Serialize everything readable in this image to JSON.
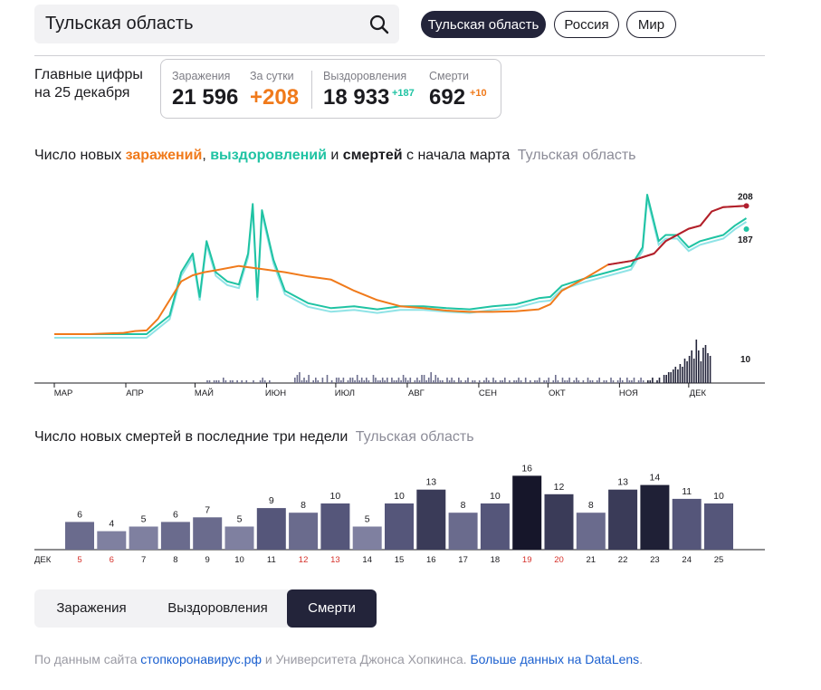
{
  "search": {
    "value": "Тульская область"
  },
  "regions": [
    {
      "label": "Тульская область",
      "active": true
    },
    {
      "label": "Россия",
      "active": false
    },
    {
      "label": "Мир",
      "active": false
    }
  ],
  "summary": {
    "heading": "Главные цифры",
    "date": "на 25 декабря",
    "infected_label": "Заражения",
    "infected": "21 596",
    "daily_label": "За сутки",
    "daily": "+208",
    "recovered_label": "Выздоровления",
    "recovered": "18 933",
    "recovered_delta": "+187",
    "deaths_label": "Смерти",
    "deaths": "692",
    "deaths_delta": "+10"
  },
  "chart1_title": {
    "prefix": "Число новых ",
    "infections": "заражений",
    "comma": ", ",
    "recoveries": "выздоровлений",
    "and": " и ",
    "deaths": "смертей",
    "suffix": " с начала марта",
    "region": "Тульская область"
  },
  "chart2_title": {
    "text": "Число новых смертей в последние три недели",
    "region": "Тульская область"
  },
  "tabs": [
    {
      "label": "Заражения",
      "active": false
    },
    {
      "label": "Выздоровления",
      "active": false
    },
    {
      "label": "Смерти",
      "active": true
    }
  ],
  "footer": {
    "prefix": "По данным сайта ",
    "link1": "стопкоронавирус.рф",
    "middle": " и Университета Джонса Хопкинса. ",
    "link2": "Больше данных на DataLens",
    "dot": "."
  },
  "colors": {
    "infections": "#f07a1b",
    "infections_late": "#b01e2e",
    "recoveries": "#1fc3a3",
    "recoveries_light": "#8fe3e6",
    "deaths_bar": "#6e6f8e",
    "accent_dark": "#23243a",
    "weekend": "#d6312b"
  },
  "chart_data": [
    {
      "type": "line",
      "months": [
        "МАР",
        "АПР",
        "МАЙ",
        "ИЮН",
        "ИЮЛ",
        "АВГ",
        "СЕН",
        "ОКТ",
        "НОЯ",
        "ДЕК"
      ],
      "x_start": "2020-03-01",
      "x_end": "2020-12-25",
      "series": [
        {
          "name": "заражений",
          "points": [
            [
              0,
              0
            ],
            [
              15,
              0
            ],
            [
              30,
              2
            ],
            [
              35,
              5
            ],
            [
              40,
              6
            ],
            [
              45,
              25
            ],
            [
              55,
              85
            ],
            [
              60,
              95
            ],
            [
              65,
              100
            ],
            [
              70,
              103
            ],
            [
              80,
              110
            ],
            [
              90,
              105
            ],
            [
              100,
              100
            ],
            [
              110,
              93
            ],
            [
              120,
              88
            ],
            [
              130,
              70
            ],
            [
              140,
              55
            ],
            [
              150,
              45
            ],
            [
              160,
              42
            ],
            [
              170,
              38
            ],
            [
              180,
              36
            ],
            [
              190,
              36
            ],
            [
              200,
              37
            ],
            [
              210,
              40
            ],
            [
              215,
              48
            ],
            [
              220,
              70
            ],
            [
              230,
              90
            ],
            [
              240,
              112
            ],
            [
              250,
              118
            ],
            [
              260,
              130
            ],
            [
              265,
              150
            ],
            [
              270,
              160
            ],
            [
              275,
              170
            ],
            [
              280,
              175
            ],
            [
              285,
              198
            ],
            [
              290,
              205
            ],
            [
              300,
              207
            ]
          ]
        },
        {
          "name": "выздоровлений",
          "points": [
            [
              0,
              0
            ],
            [
              30,
              0
            ],
            [
              40,
              0
            ],
            [
              50,
              30
            ],
            [
              55,
              100
            ],
            [
              60,
              130
            ],
            [
              63,
              60
            ],
            [
              66,
              150
            ],
            [
              70,
              100
            ],
            [
              75,
              85
            ],
            [
              80,
              80
            ],
            [
              84,
              130
            ],
            [
              86,
              210
            ],
            [
              88,
              60
            ],
            [
              90,
              200
            ],
            [
              95,
              120
            ],
            [
              100,
              70
            ],
            [
              110,
              50
            ],
            [
              120,
              42
            ],
            [
              130,
              45
            ],
            [
              140,
              40
            ],
            [
              150,
              45
            ],
            [
              160,
              45
            ],
            [
              170,
              42
            ],
            [
              180,
              40
            ],
            [
              190,
              45
            ],
            [
              200,
              48
            ],
            [
              210,
              58
            ],
            [
              215,
              60
            ],
            [
              220,
              78
            ],
            [
              230,
              90
            ],
            [
              240,
              100
            ],
            [
              250,
              110
            ],
            [
              255,
              140
            ],
            [
              257,
              225
            ],
            [
              260,
              180
            ],
            [
              262,
              150
            ],
            [
              265,
              160
            ],
            [
              270,
              160
            ],
            [
              275,
              140
            ],
            [
              280,
              150
            ],
            [
              285,
              155
            ],
            [
              290,
              160
            ],
            [
              295,
              175
            ],
            [
              300,
              187
            ]
          ]
        }
      ],
      "end_labels": {
        "infections": "208",
        "recoveries": "187",
        "deaths": "10"
      },
      "deaths_bars": [
        0,
        0,
        0,
        0,
        0,
        0,
        0,
        0,
        0,
        0,
        0,
        0,
        0,
        0,
        0,
        0,
        0,
        0,
        0,
        0,
        0,
        0,
        0,
        0,
        0,
        0,
        0,
        0,
        0,
        0,
        0,
        0,
        0,
        0,
        0,
        0,
        0,
        0,
        0,
        0,
        0,
        0,
        0,
        0,
        0,
        0,
        0,
        0,
        0,
        0,
        0,
        0,
        0,
        0,
        0,
        0,
        0,
        0,
        0,
        0,
        0,
        0,
        0,
        0,
        0,
        0,
        1,
        1,
        0,
        1,
        1,
        1,
        0,
        2,
        1,
        0,
        1,
        1,
        0,
        1,
        0,
        1,
        0,
        1,
        0,
        0,
        1,
        0,
        0,
        1,
        2,
        1,
        0,
        1,
        0,
        0,
        0,
        0,
        0,
        0,
        0,
        0,
        0,
        0,
        2,
        3,
        4,
        1,
        2,
        1,
        3,
        0,
        1,
        2,
        1,
        0,
        2,
        0,
        3,
        0,
        1,
        0,
        2,
        2,
        1,
        2,
        0,
        1,
        2,
        2,
        1,
        3,
        1,
        2,
        1,
        2,
        1,
        0,
        3,
        2,
        1,
        1,
        2,
        1,
        2,
        0,
        2,
        1,
        1,
        2,
        1,
        3,
        2,
        1,
        2,
        0,
        1,
        2,
        1,
        3,
        3,
        1,
        2,
        4,
        1,
        3,
        2,
        1,
        1,
        0,
        2,
        1,
        2,
        1,
        0,
        2,
        1,
        0,
        1,
        2,
        0,
        1,
        1,
        0,
        1,
        0,
        1,
        2,
        1,
        0,
        2,
        1,
        0,
        1,
        1,
        2,
        0,
        1,
        0,
        1,
        1,
        2,
        1,
        0,
        2,
        0,
        1,
        0,
        1,
        1,
        2,
        0,
        1,
        1,
        2,
        0,
        1,
        3,
        1,
        0,
        2,
        1,
        1,
        2,
        0,
        1,
        2,
        1,
        0,
        1,
        0,
        2,
        1,
        1,
        0,
        1,
        2,
        0,
        1,
        1,
        0,
        2,
        1,
        0,
        1,
        2,
        1,
        0,
        2,
        1,
        1,
        2,
        0,
        1,
        2,
        1,
        0,
        1,
        1,
        2,
        0,
        1,
        2,
        0,
        3,
        3,
        4,
        4,
        5,
        6,
        5,
        7,
        6,
        9,
        8,
        10,
        12,
        9,
        16,
        12,
        8,
        13,
        14,
        11,
        10
      ]
    },
    {
      "type": "bar",
      "month_label": "ДЕК",
      "categories": [
        "5",
        "6",
        "7",
        "8",
        "9",
        "10",
        "11",
        "12",
        "13",
        "14",
        "15",
        "16",
        "17",
        "18",
        "19",
        "20",
        "21",
        "22",
        "23",
        "24",
        "25"
      ],
      "values": [
        6,
        4,
        5,
        6,
        7,
        5,
        9,
        8,
        10,
        5,
        10,
        13,
        8,
        10,
        16,
        12,
        8,
        13,
        14,
        11,
        10
      ],
      "weekend_days": [
        "5",
        "6",
        "12",
        "13",
        "19",
        "20"
      ]
    }
  ]
}
